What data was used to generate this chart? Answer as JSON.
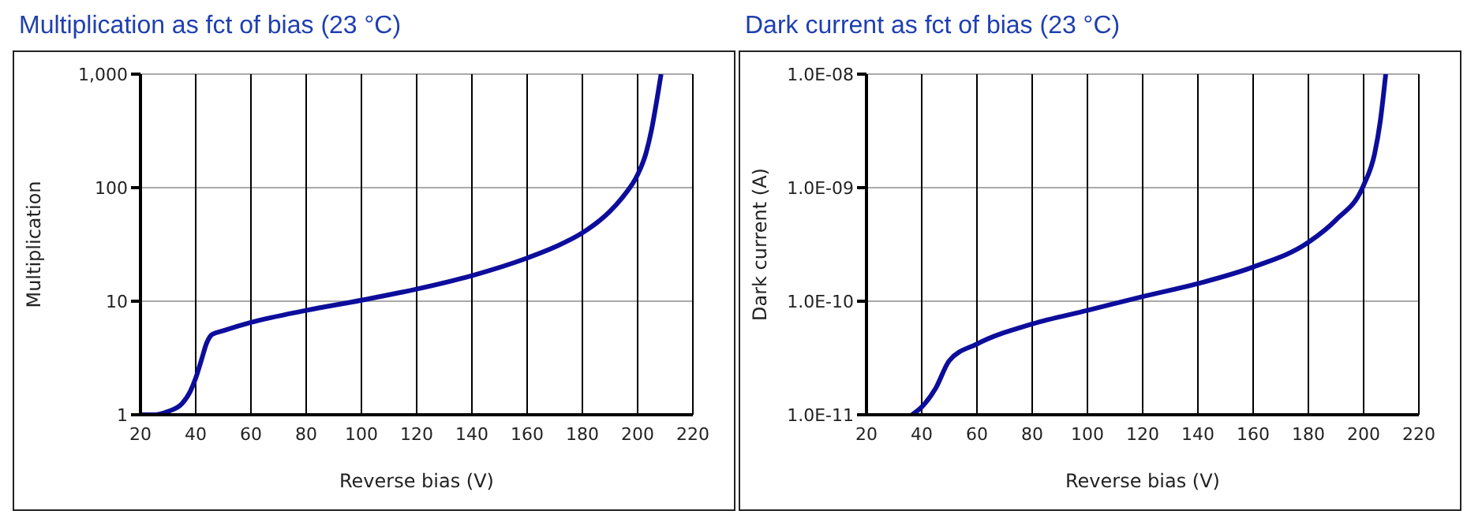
{
  "chart_data": [
    {
      "type": "line",
      "title": "Multiplication as fct of bias (23 °C)",
      "xlabel": "Reverse bias (V)",
      "ylabel": "Multiplication",
      "log": "y",
      "grid": true,
      "legend": false,
      "marker": "none",
      "line_style": "solid",
      "xlim": [
        20,
        220
      ],
      "xticks": [
        20,
        40,
        60,
        80,
        100,
        120,
        140,
        160,
        180,
        200,
        220
      ],
      "ylim": [
        1,
        1000
      ],
      "yticks": [
        1,
        10,
        100,
        {
          "value": 1000,
          "label": "1,000"
        }
      ],
      "series": [
        {
          "color": "#0d0d9c",
          "x": [
            20,
            25,
            30,
            35,
            38,
            40,
            42,
            44,
            46,
            50,
            60,
            80,
            100,
            120,
            140,
            160,
            170,
            180,
            190,
            195,
            200,
            203,
            205,
            207,
            208.5
          ],
          "values": [
            1,
            1,
            1.07,
            1.25,
            1.6,
            2.1,
            3,
            4.3,
            5.1,
            5.5,
            6.5,
            8.3,
            10.2,
            12.8,
            16.8,
            24,
            30,
            40,
            62,
            85,
            130,
            200,
            320,
            600,
            1000
          ]
        }
      ]
    },
    {
      "type": "line",
      "title": "Dark current as fct of bias (23 °C)",
      "xlabel": "Reverse bias (V)",
      "ylabel": "Dark current  (A)",
      "log": "y",
      "grid": true,
      "legend": false,
      "marker": "none",
      "line_style": "solid",
      "xlim": [
        20,
        220
      ],
      "xticks": [
        20,
        40,
        60,
        80,
        100,
        120,
        140,
        160,
        180,
        200,
        220
      ],
      "ylim": [
        1e-11,
        1e-08
      ],
      "yticks": [
        {
          "value": 1e-11,
          "label": "1.0E-11"
        },
        {
          "value": 1e-10,
          "label": "1.0E-10"
        },
        {
          "value": 1e-09,
          "label": "1.0E-09"
        },
        {
          "value": 1e-08,
          "label": "1.0E-08"
        }
      ],
      "series": [
        {
          "color": "#0d0d9c",
          "x": [
            36.5,
            40,
            45,
            50,
            60,
            80,
            100,
            120,
            140,
            160,
            180,
            190,
            200,
            204,
            206,
            208
          ],
          "values": [
            1e-11,
            1.17e-11,
            1.7e-11,
            3e-11,
            4.2e-11,
            6.3e-11,
            8.3e-11,
            1.1e-10,
            1.43e-10,
            2e-10,
            3.3e-10,
            5.2e-10,
            1.05e-09,
            2e-09,
            3.8e-09,
            1e-08
          ]
        }
      ]
    }
  ]
}
